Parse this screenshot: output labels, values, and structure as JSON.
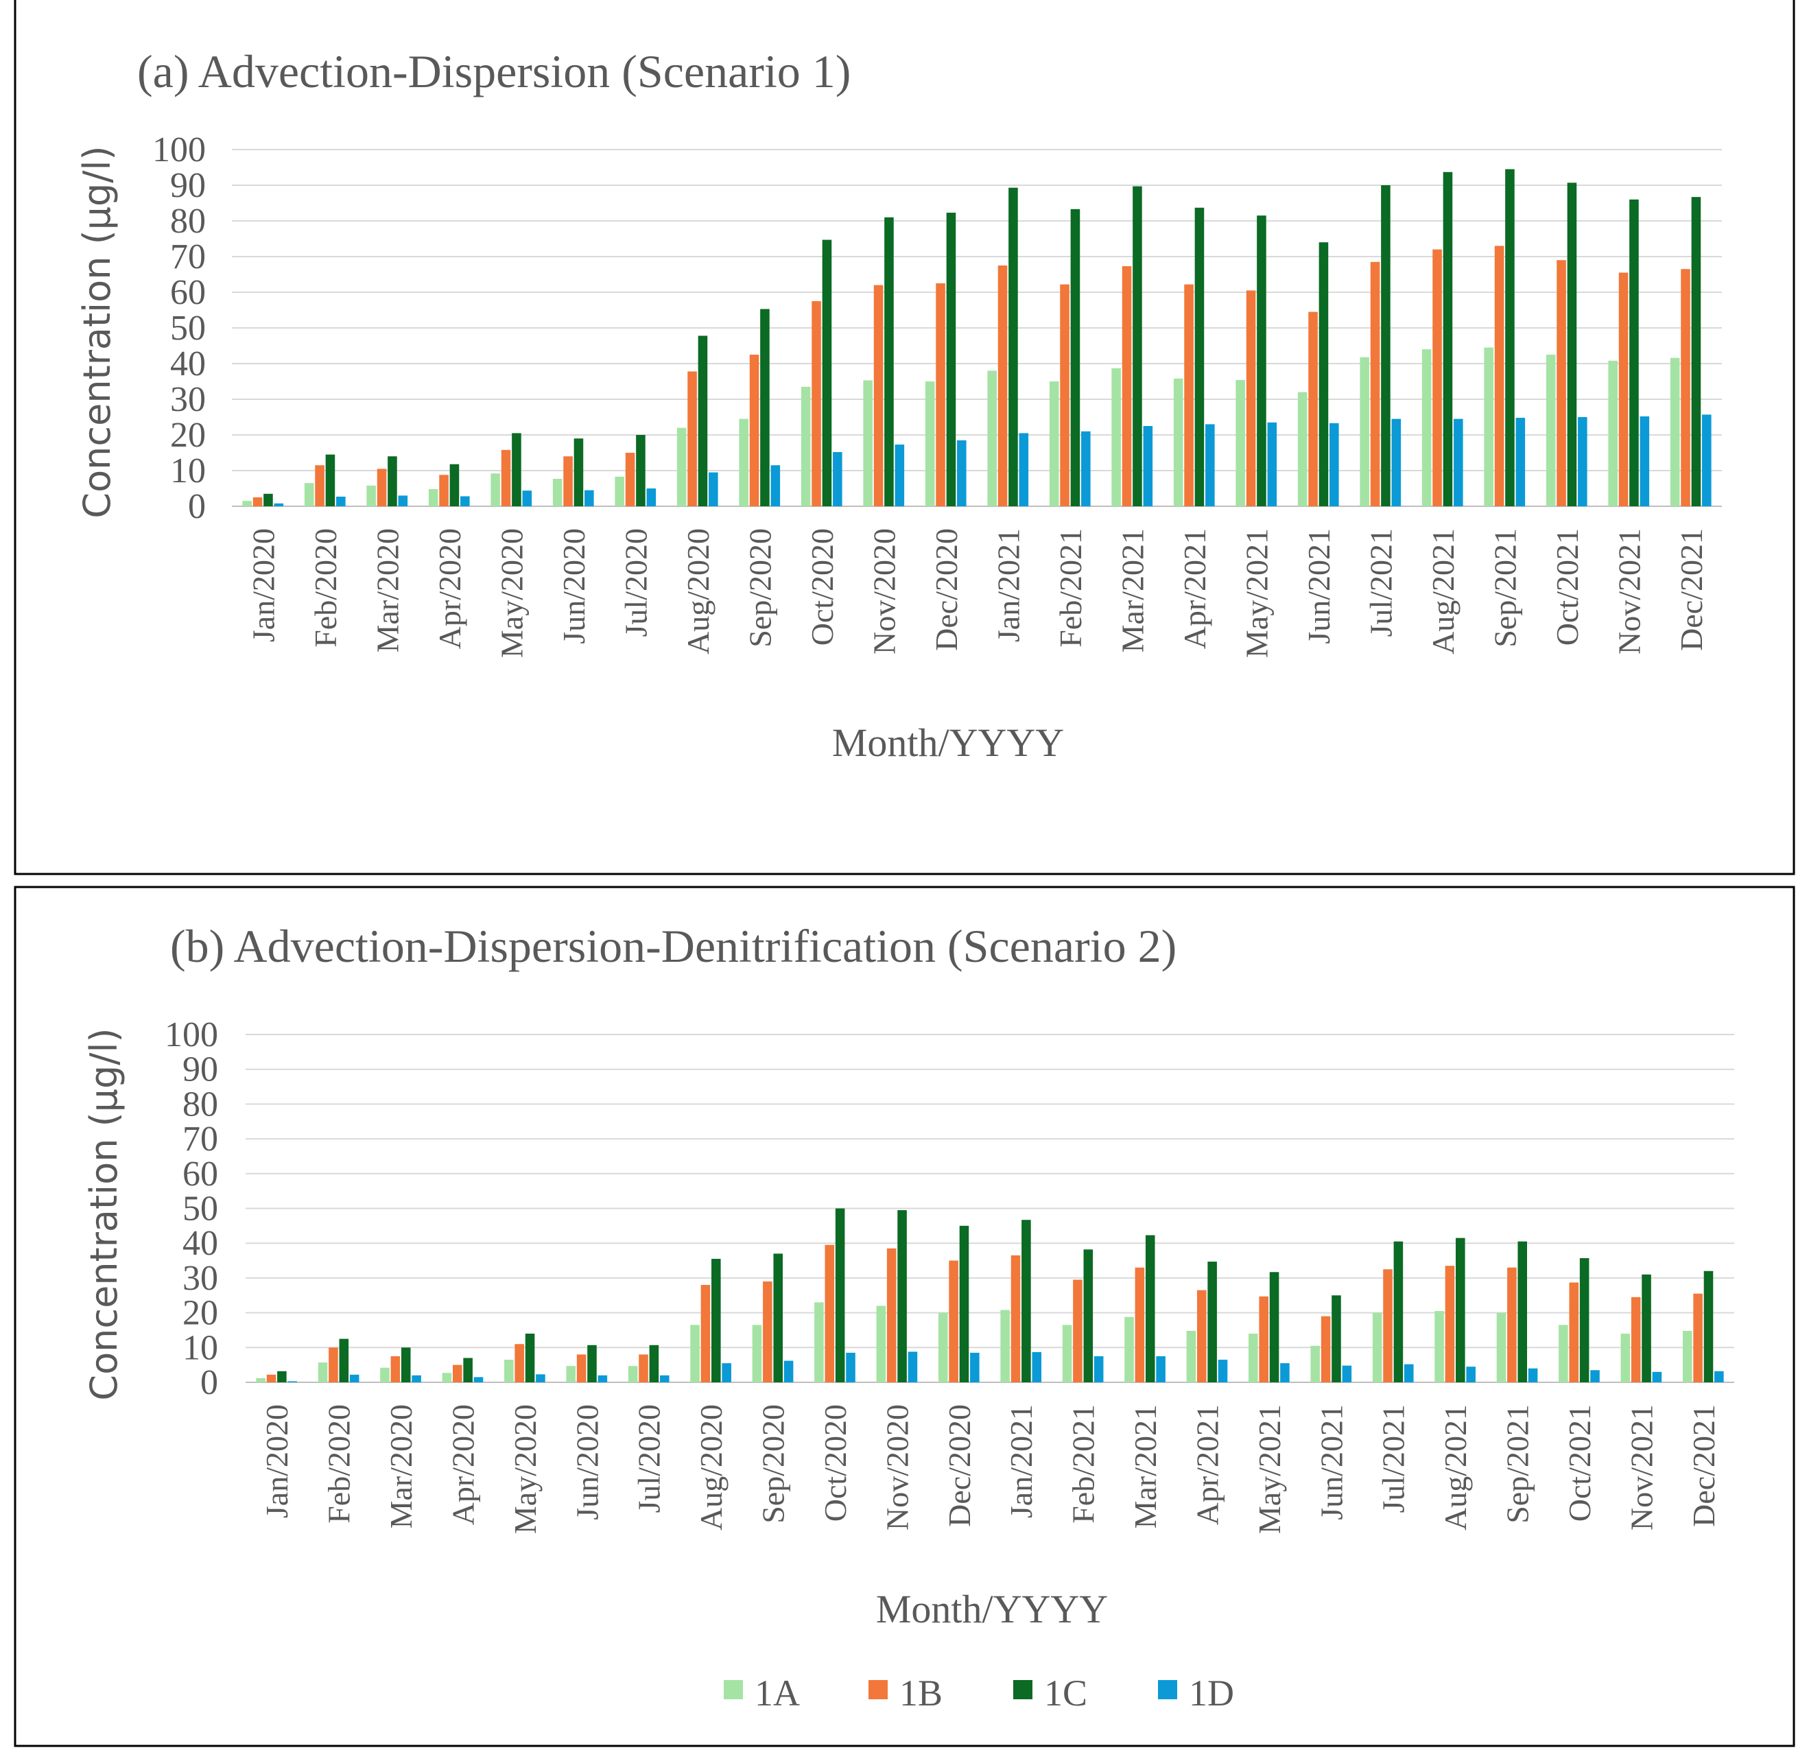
{
  "colors": {
    "1A": "#a4e3a4",
    "1B": "#f2773a",
    "1C": "#0b6a23",
    "1D": "#0b9ad6",
    "grid": "#d9d9d9",
    "frame": "#000000"
  },
  "legend": [
    "1A",
    "1B",
    "1C",
    "1D"
  ],
  "chart_data": [
    {
      "type": "bar",
      "title": "(a) Advection-Dispersion (Scenario 1)",
      "xlabel": "Month/YYYY",
      "ylabel": "Concentration (µg/l)",
      "ylim": [
        0,
        100
      ],
      "yticks": [
        "0",
        "10",
        "20",
        "30",
        "40",
        "50",
        "60",
        "70",
        "80",
        "90",
        "100"
      ],
      "grid": "horizontal",
      "categories": [
        "Jan/2020",
        "Feb/2020",
        "Mar/2020",
        "Apr/2020",
        "May/2020",
        "Jun/2020",
        "Jul/2020",
        "Aug/2020",
        "Sep/2020",
        "Oct/2020",
        "Nov/2020",
        "Dec/2020",
        "Jan/2021",
        "Feb/2021",
        "Mar/2021",
        "Apr/2021",
        "May/2021",
        "Jun/2021",
        "Jul/2021",
        "Aug/2021",
        "Sep/2021",
        "Oct/2021",
        "Nov/2021",
        "Dec/2021"
      ],
      "series": [
        {
          "name": "1A",
          "values": [
            1.5,
            6.5,
            5.8,
            4.8,
            9.2,
            7.7,
            8.3,
            22,
            24.5,
            33.5,
            35.3,
            35,
            38,
            35,
            38.7,
            35.8,
            35.4,
            32,
            41.8,
            44,
            44.5,
            42.5,
            40.8,
            41.6
          ]
        },
        {
          "name": "1B",
          "values": [
            2.5,
            11.5,
            10.5,
            8.8,
            15.8,
            14,
            15,
            37.8,
            42.5,
            57.5,
            62,
            62.5,
            67.5,
            62.2,
            67.3,
            62.2,
            60.5,
            54.5,
            68.5,
            72,
            73,
            69,
            65.5,
            66.5
          ]
        },
        {
          "name": "1C",
          "values": [
            3.5,
            14.5,
            14,
            11.8,
            20.5,
            19,
            20,
            47.8,
            55.3,
            74.7,
            81,
            82.3,
            89.3,
            83.3,
            89.7,
            83.7,
            81.5,
            74,
            90,
            93.7,
            94.5,
            90.7,
            86,
            86.7
          ]
        },
        {
          "name": "1D",
          "values": [
            0.8,
            2.7,
            3,
            2.8,
            4.4,
            4.5,
            5,
            9.5,
            11.5,
            15.2,
            17.3,
            18.5,
            20.5,
            21,
            22.5,
            23,
            23.5,
            23.3,
            24.5,
            24.5,
            24.8,
            25,
            25.2,
            25.7
          ]
        }
      ]
    },
    {
      "type": "bar",
      "title": "(b) Advection-Dispersion-Denitrification (Scenario 2)",
      "xlabel": "Month/YYYY",
      "ylabel": "Concentration (µg/l)",
      "ylim": [
        0,
        100
      ],
      "yticks": [
        "0",
        "10",
        "20",
        "30",
        "40",
        "50",
        "60",
        "70",
        "80",
        "90",
        "100"
      ],
      "grid": "horizontal",
      "categories": [
        "Jan/2020",
        "Feb/2020",
        "Mar/2020",
        "Apr/2020",
        "May/2020",
        "Jun/2020",
        "Jul/2020",
        "Aug/2020",
        "Sep/2020",
        "Oct/2020",
        "Nov/2020",
        "Dec/2020",
        "Jan/2021",
        "Feb/2021",
        "Mar/2021",
        "Apr/2021",
        "May/2021",
        "Jun/2021",
        "Jul/2021",
        "Aug/2021",
        "Sep/2021",
        "Oct/2021",
        "Nov/2021",
        "Dec/2021"
      ],
      "series": [
        {
          "name": "1A",
          "values": [
            1.2,
            5.7,
            4.2,
            2.7,
            6.5,
            4.7,
            4.7,
            16.5,
            16.5,
            23,
            22,
            20,
            20.8,
            16.5,
            18.8,
            14.8,
            14,
            10.5,
            20,
            20.5,
            20,
            16.5,
            14,
            14.8
          ]
        },
        {
          "name": "1B",
          "values": [
            2.2,
            10,
            7.5,
            5,
            11,
            8,
            8,
            28,
            29,
            39.5,
            38.5,
            35,
            36.5,
            29.5,
            33,
            26.5,
            24.7,
            19,
            32.5,
            33.5,
            33,
            28.7,
            24.5,
            25.5
          ]
        },
        {
          "name": "1C",
          "values": [
            3.2,
            12.5,
            10,
            7,
            14,
            10.7,
            10.7,
            35.5,
            37,
            50,
            49.5,
            45,
            46.7,
            38.2,
            42.3,
            34.7,
            31.7,
            25,
            40.5,
            41.5,
            40.5,
            35.7,
            31,
            32
          ]
        },
        {
          "name": "1D",
          "values": [
            0.3,
            2.2,
            2,
            1.5,
            2.3,
            2,
            2,
            5.5,
            6.2,
            8.5,
            8.8,
            8.5,
            8.7,
            7.5,
            7.5,
            6.5,
            5.5,
            4.8,
            5.2,
            4.5,
            4,
            3.5,
            3,
            3.2
          ]
        }
      ]
    }
  ]
}
